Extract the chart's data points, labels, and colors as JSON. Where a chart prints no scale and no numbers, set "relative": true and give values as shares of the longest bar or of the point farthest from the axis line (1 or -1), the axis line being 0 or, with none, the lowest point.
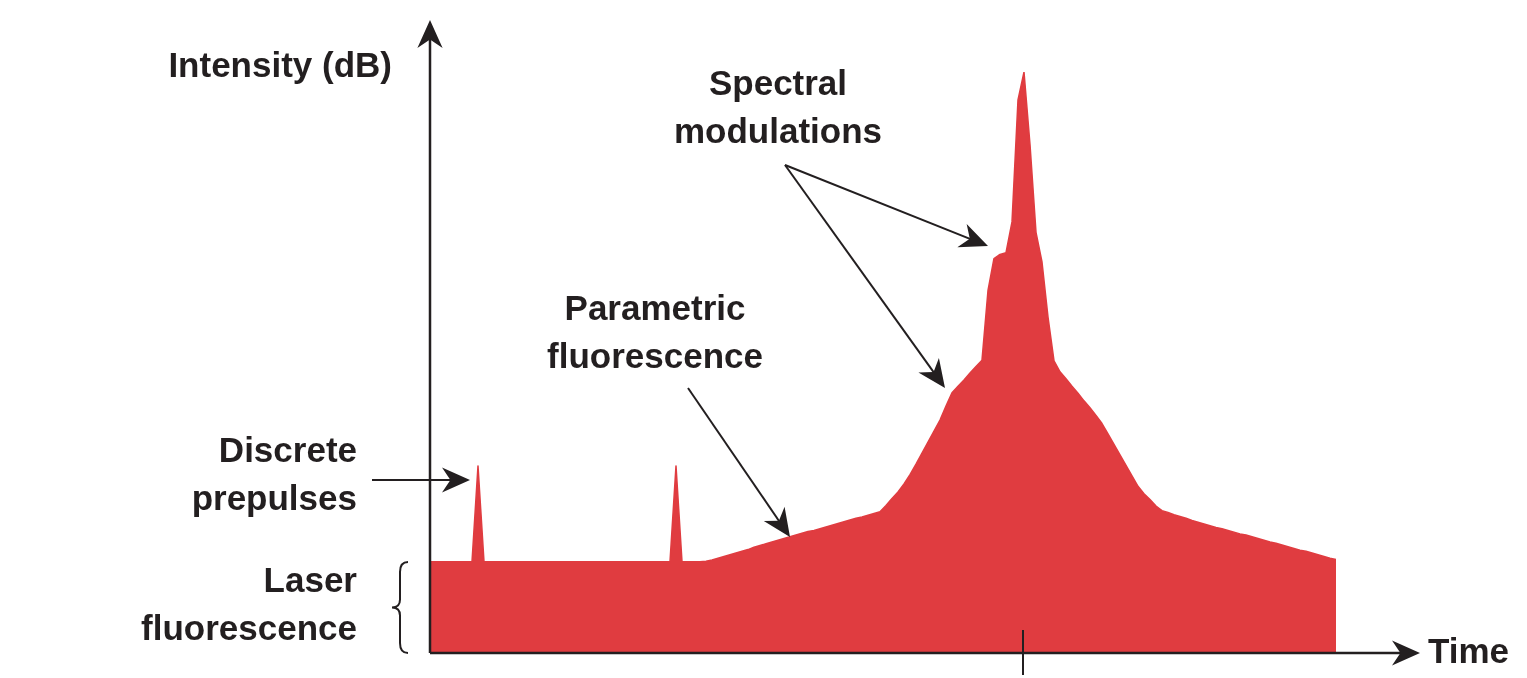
{
  "chart_data": {
    "type": "area",
    "relative": true,
    "xlabel": "Time",
    "ylabel": "Intensity (dB)",
    "categories": [
      null,
      null,
      null,
      null,
      null,
      null,
      null,
      null,
      null,
      null,
      null,
      null,
      null,
      null,
      null,
      null,
      null,
      null,
      null,
      null,
      null,
      null,
      null,
      null,
      null,
      null,
      null,
      null,
      null,
      null,
      null,
      null,
      null,
      null,
      null,
      null,
      null,
      null,
      null,
      null,
      null,
      null,
      null,
      null,
      null,
      null,
      null,
      null,
      null,
      null,
      null,
      null,
      null,
      null,
      null,
      null,
      null,
      null,
      null,
      null,
      null,
      null,
      null,
      null,
      null,
      null,
      null,
      null,
      null,
      null,
      null,
      null,
      null,
      null,
      null,
      null,
      null,
      null,
      null,
      null,
      null,
      null,
      null,
      null,
      null,
      null,
      null,
      null,
      null,
      null,
      null,
      null,
      null,
      null,
      null,
      null,
      null,
      null,
      null,
      null,
      null,
      null,
      null,
      null,
      null,
      null,
      null,
      null,
      null,
      null,
      null,
      null,
      null,
      null,
      null,
      null,
      null,
      null,
      null,
      null,
      null,
      null,
      null,
      null,
      null,
      null,
      null,
      null,
      null,
      null,
      null,
      null,
      null,
      null,
      null,
      null,
      null,
      null,
      null,
      null,
      null,
      null,
      null,
      null,
      null,
      null,
      null,
      null,
      null,
      null,
      null,
      null
    ],
    "series": [
      {
        "color": "#e03c40",
        "values": [
          0.157,
          0.157,
          0.157,
          0.157,
          0.157,
          0.157,
          0.157,
          0.157,
          0.322,
          0.157,
          0.157,
          0.157,
          0.157,
          0.157,
          0.157,
          0.157,
          0.157,
          0.157,
          0.157,
          0.157,
          0.157,
          0.157,
          0.157,
          0.157,
          0.157,
          0.157,
          0.157,
          0.157,
          0.157,
          0.157,
          0.157,
          0.157,
          0.157,
          0.157,
          0.157,
          0.157,
          0.157,
          0.157,
          0.157,
          0.157,
          0.157,
          0.322,
          0.157,
          0.157,
          0.157,
          0.157,
          0.158,
          0.16,
          0.163,
          0.166,
          0.169,
          0.172,
          0.175,
          0.178,
          0.182,
          0.185,
          0.188,
          0.191,
          0.194,
          0.197,
          0.2,
          0.203,
          0.206,
          0.209,
          0.211,
          0.214,
          0.217,
          0.22,
          0.223,
          0.226,
          0.229,
          0.232,
          0.234,
          0.237,
          0.24,
          0.243,
          0.254,
          0.266,
          0.277,
          0.291,
          0.307,
          0.325,
          0.344,
          0.363,
          0.382,
          0.401,
          0.425,
          0.448,
          0.459,
          0.47,
          0.482,
          0.493,
          0.504,
          0.624,
          0.679,
          0.686,
          0.689,
          0.742,
          0.952,
          1,
          0.875,
          0.724,
          0.673,
          0.578,
          0.503,
          0.484,
          0.472,
          0.459,
          0.447,
          0.434,
          0.422,
          0.409,
          0.395,
          0.377,
          0.359,
          0.341,
          0.323,
          0.305,
          0.287,
          0.274,
          0.264,
          0.253,
          0.245,
          0.242,
          0.238,
          0.235,
          0.232,
          0.228,
          0.225,
          0.222,
          0.219,
          0.216,
          0.214,
          0.211,
          0.208,
          0.205,
          0.203,
          0.2,
          0.197,
          0.194,
          0.191,
          0.189,
          0.186,
          0.183,
          0.18,
          0.177,
          0.175,
          0.172,
          0.169,
          0.166,
          0.163,
          0.161
        ]
      }
    ],
    "annotations": [
      "Spectral modulations",
      "Parametric fluorescence",
      "Discrete prepulses",
      "Laser fluorescence"
    ]
  }
}
